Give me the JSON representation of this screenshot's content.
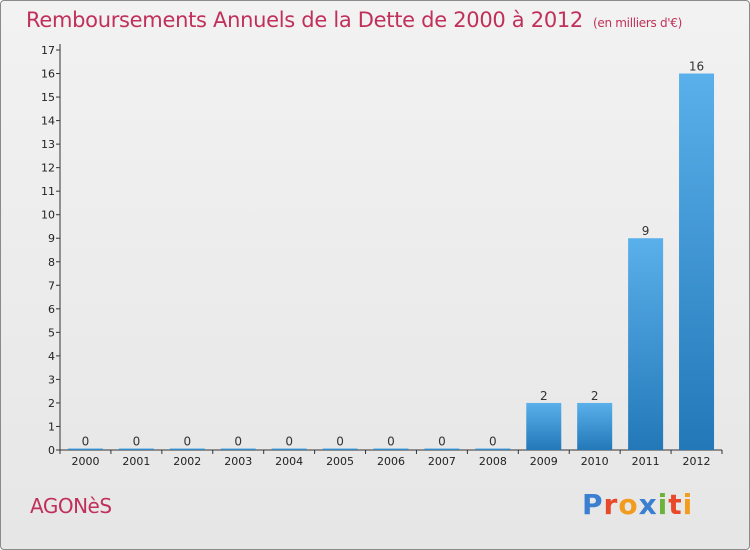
{
  "header": {
    "title": "Remboursements Annuels de la Dette de 2000 à 2012",
    "unit": "(en milliers d'€)"
  },
  "footer": {
    "commune": "AGONèS",
    "logo": "Proxiti"
  },
  "colors": {
    "title": "#c0305a",
    "bar_top": "#5ab0ea",
    "bar_bottom": "#2378b8"
  },
  "chart_data": {
    "type": "bar",
    "title": "Remboursements Annuels de la Dette de 2000 à 2012",
    "subtitle": "(en milliers d'€)",
    "xlabel": "",
    "ylabel": "",
    "categories": [
      "2000",
      "2001",
      "2002",
      "2003",
      "2004",
      "2005",
      "2006",
      "2007",
      "2008",
      "2009",
      "2010",
      "2011",
      "2012"
    ],
    "values": [
      0,
      0,
      0,
      0,
      0,
      0,
      0,
      0,
      0,
      2,
      2,
      9,
      16
    ],
    "ylim": [
      0,
      17
    ],
    "yticks": [
      "0",
      "1",
      "2",
      "3",
      "4",
      "5",
      "6",
      "7",
      "8",
      "9",
      "10",
      "11",
      "12",
      "13",
      "14",
      "15",
      "16",
      "17"
    ],
    "grid": false,
    "legend": "none"
  }
}
